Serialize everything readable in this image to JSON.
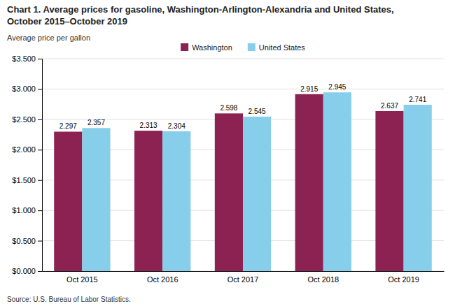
{
  "chart_data": {
    "type": "bar",
    "title": [
      "Chart 1. Average prices for gasoline, Washington-Arlington-Alexandria and United States,",
      "October 2015–October 2019"
    ],
    "ylabel": "Average price per gallon",
    "source": "Source: U.S. Bureau of Labor Statistics.",
    "categories": [
      "Oct 2015",
      "Oct 2016",
      "Oct 2017",
      "Oct 2018",
      "Oct 2019"
    ],
    "series": [
      {
        "name": "Washington",
        "color": "#8B2252",
        "values": [
          2.297,
          2.313,
          2.598,
          2.915,
          2.637
        ]
      },
      {
        "name": "United States",
        "color": "#87CEEB",
        "values": [
          2.357,
          2.304,
          2.545,
          2.945,
          2.741
        ]
      }
    ],
    "ylim": [
      0,
      3.5
    ],
    "yticks": [
      {
        "value": 0.0,
        "label": "$0.000"
      },
      {
        "value": 0.5,
        "label": "$0.500"
      },
      {
        "value": 1.0,
        "label": "$1.000"
      },
      {
        "value": 1.5,
        "label": "$1.500"
      },
      {
        "value": 2.0,
        "label": "$2.000"
      },
      {
        "value": 2.5,
        "label": "$2.500"
      },
      {
        "value": 3.0,
        "label": "$3.000"
      },
      {
        "value": 3.5,
        "label": "$3.500"
      }
    ],
    "grid": true,
    "legend": "top",
    "data_labels": true
  }
}
